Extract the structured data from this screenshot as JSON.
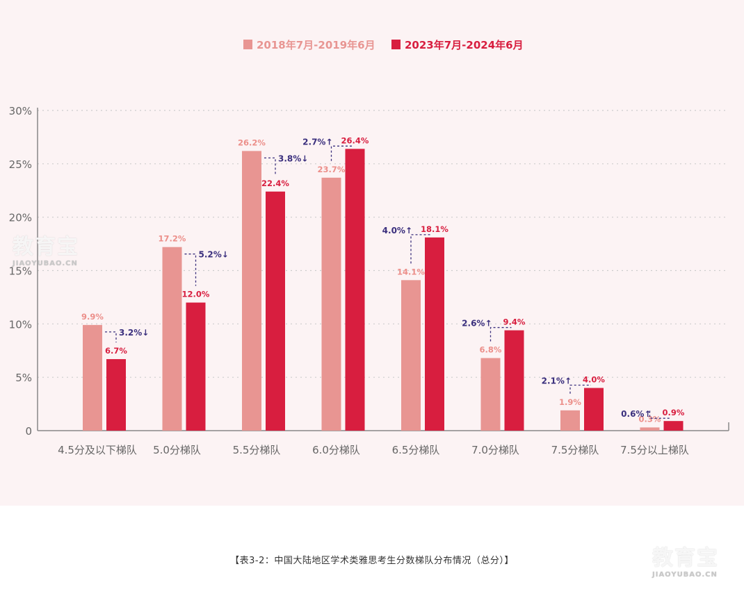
{
  "chart_data": {
    "type": "bar",
    "categories": [
      "4.5分及以下梯队",
      "5.0分梯队",
      "5.5分梯队",
      "6.0分梯队",
      "6.5分梯队",
      "7.0分梯队",
      "7.5分梯队",
      "7.5分以上梯队"
    ],
    "series": [
      {
        "name": "2018年7月-2019年6月",
        "color": "#e89592",
        "values": [
          9.9,
          17.2,
          26.2,
          23.7,
          14.1,
          6.8,
          1.9,
          0.3
        ]
      },
      {
        "name": "2023年7月-2024年6月",
        "color": "#d81e3f",
        "values": [
          6.7,
          12.0,
          22.4,
          26.4,
          18.1,
          9.4,
          4.0,
          0.9
        ]
      }
    ],
    "value_labels": [
      [
        "9.9%",
        "17.2%",
        "26.2%",
        "23.7%",
        "14.1%",
        "6.8%",
        "1.9%",
        "0.3%"
      ],
      [
        "6.7%",
        "12.0%",
        "22.4%",
        "26.4%",
        "18.1%",
        "9.4%",
        "4.0%",
        "0.9%"
      ]
    ],
    "changes": [
      "3.2%↓",
      "5.2%↓",
      "3.8%↓",
      "2.7%↑",
      "4.0%↑",
      "2.6%↑",
      "2.1%↑",
      "0.6%↑"
    ],
    "change_direction": [
      "down",
      "down",
      "down",
      "up",
      "up",
      "up",
      "up",
      "up"
    ],
    "y_ticks": [
      "0",
      "5%",
      "10%",
      "15%",
      "20%",
      "25%",
      "30%"
    ],
    "ylim": [
      0,
      30
    ],
    "grid": true,
    "legend_position": "top-center",
    "change_color": "#3a2f7d",
    "title": "",
    "xlabel": "",
    "ylabel": ""
  },
  "caption": "【表3-2：中国大陆地区学术类雅思考生分数梯队分布情况（总分）】",
  "watermark": {
    "main": "教育宝",
    "sub": "JIAOYUBAO.CN"
  }
}
